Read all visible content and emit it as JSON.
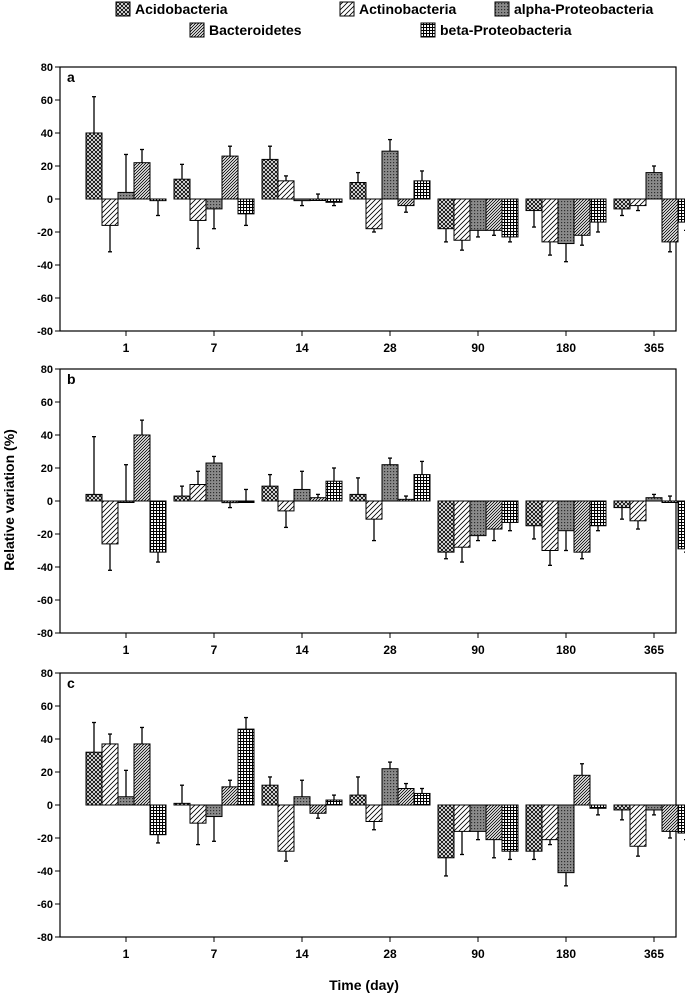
{
  "chart_data": {
    "type": "bar",
    "xlabel": "Time (day)",
    "ylabel": "Relative variation (%)",
    "categories": [
      "1",
      "7",
      "14",
      "28",
      "90",
      "180",
      "365"
    ],
    "ylim": [
      -80,
      80
    ],
    "yticks": [
      -80,
      -60,
      -40,
      -20,
      0,
      20,
      40,
      60,
      80
    ],
    "legend": {
      "placement": "top",
      "entries": [
        "Acidobacteria",
        "Actinobacteria",
        "alpha-Proteobacteria",
        "Bacteroidetes",
        "beta-Proteobacteria"
      ]
    },
    "series_styles": [
      "crosshatch",
      "diagonal-sparse",
      "dense-dotted",
      "diagonal-dense",
      "grid"
    ],
    "panels": [
      {
        "label": "a",
        "series": [
          {
            "name": "Acidobacteria",
            "values": [
              40,
              12,
              24,
              10,
              -18,
              -7,
              -6
            ],
            "errors": [
              22,
              9,
              8,
              6,
              8,
              10,
              4
            ]
          },
          {
            "name": "Actinobacteria",
            "values": [
              -16,
              -13,
              11,
              -18,
              -25,
              -26,
              -4
            ],
            "errors": [
              16,
              17,
              3,
              2,
              6,
              8,
              3
            ]
          },
          {
            "name": "alpha-Proteobacteria",
            "values": [
              4,
              -6,
              -1,
              29,
              -19,
              -27,
              16
            ],
            "errors": [
              23,
              12,
              3,
              7,
              4,
              11,
              4
            ]
          },
          {
            "name": "Bacteroidetes",
            "values": [
              22,
              26,
              0,
              -4,
              -19,
              -22,
              -26
            ],
            "errors": [
              8,
              6,
              3,
              4,
              3,
              6,
              6
            ]
          },
          {
            "name": "beta-Proteobacteria",
            "values": [
              -1,
              -9,
              -2,
              11,
              -23,
              -14,
              -14
            ],
            "errors": [
              9,
              7,
              2,
              6,
              3,
              6,
              5
            ]
          }
        ]
      },
      {
        "label": "b",
        "series": [
          {
            "name": "Acidobacteria",
            "values": [
              4,
              3,
              9,
              4,
              -31,
              -15,
              -4
            ],
            "errors": [
              35,
              6,
              7,
              10,
              4,
              8,
              7
            ]
          },
          {
            "name": "Actinobacteria",
            "values": [
              -26,
              10,
              -6,
              -11,
              -28,
              -30,
              -12
            ],
            "errors": [
              16,
              8,
              10,
              13,
              9,
              9,
              5
            ]
          },
          {
            "name": "alpha-Proteobacteria",
            "values": [
              0,
              23,
              7,
              22,
              -21,
              -18,
              2
            ],
            "errors": [
              22,
              4,
              11,
              4,
              3,
              12,
              2
            ]
          },
          {
            "name": "Bacteroidetes",
            "values": [
              40,
              -1,
              2,
              1,
              -17,
              -31,
              0
            ],
            "errors": [
              9,
              3,
              2,
              2,
              7,
              4,
              3
            ]
          },
          {
            "name": "beta-Proteobacteria",
            "values": [
              -31,
              0,
              12,
              16,
              -13,
              -15,
              -29
            ],
            "errors": [
              6,
              7,
              8,
              8,
              5,
              3,
              2
            ]
          }
        ]
      },
      {
        "label": "c",
        "series": [
          {
            "name": "Acidobacteria",
            "values": [
              32,
              1,
              12,
              6,
              -32,
              -28,
              -3
            ],
            "errors": [
              18,
              11,
              5,
              11,
              11,
              5,
              6
            ]
          },
          {
            "name": "Actinobacteria",
            "values": [
              37,
              -11,
              -28,
              -10,
              -16,
              -21,
              -25
            ],
            "errors": [
              6,
              13,
              6,
              5,
              14,
              3,
              6
            ]
          },
          {
            "name": "alpha-Proteobacteria",
            "values": [
              5,
              -7,
              5,
              22,
              -16,
              -41,
              -3
            ],
            "errors": [
              16,
              15,
              10,
              4,
              5,
              8,
              3
            ]
          },
          {
            "name": "Bacteroidetes",
            "values": [
              37,
              11,
              -5,
              10,
              -21,
              18,
              -16
            ],
            "errors": [
              10,
              4,
              3,
              3,
              11,
              7,
              4
            ]
          },
          {
            "name": "beta-Proteobacteria",
            "values": [
              -18,
              46,
              3,
              7,
              -28,
              -2,
              -17
            ],
            "errors": [
              5,
              7,
              3,
              3,
              5,
              4,
              4
            ]
          }
        ]
      }
    ]
  }
}
